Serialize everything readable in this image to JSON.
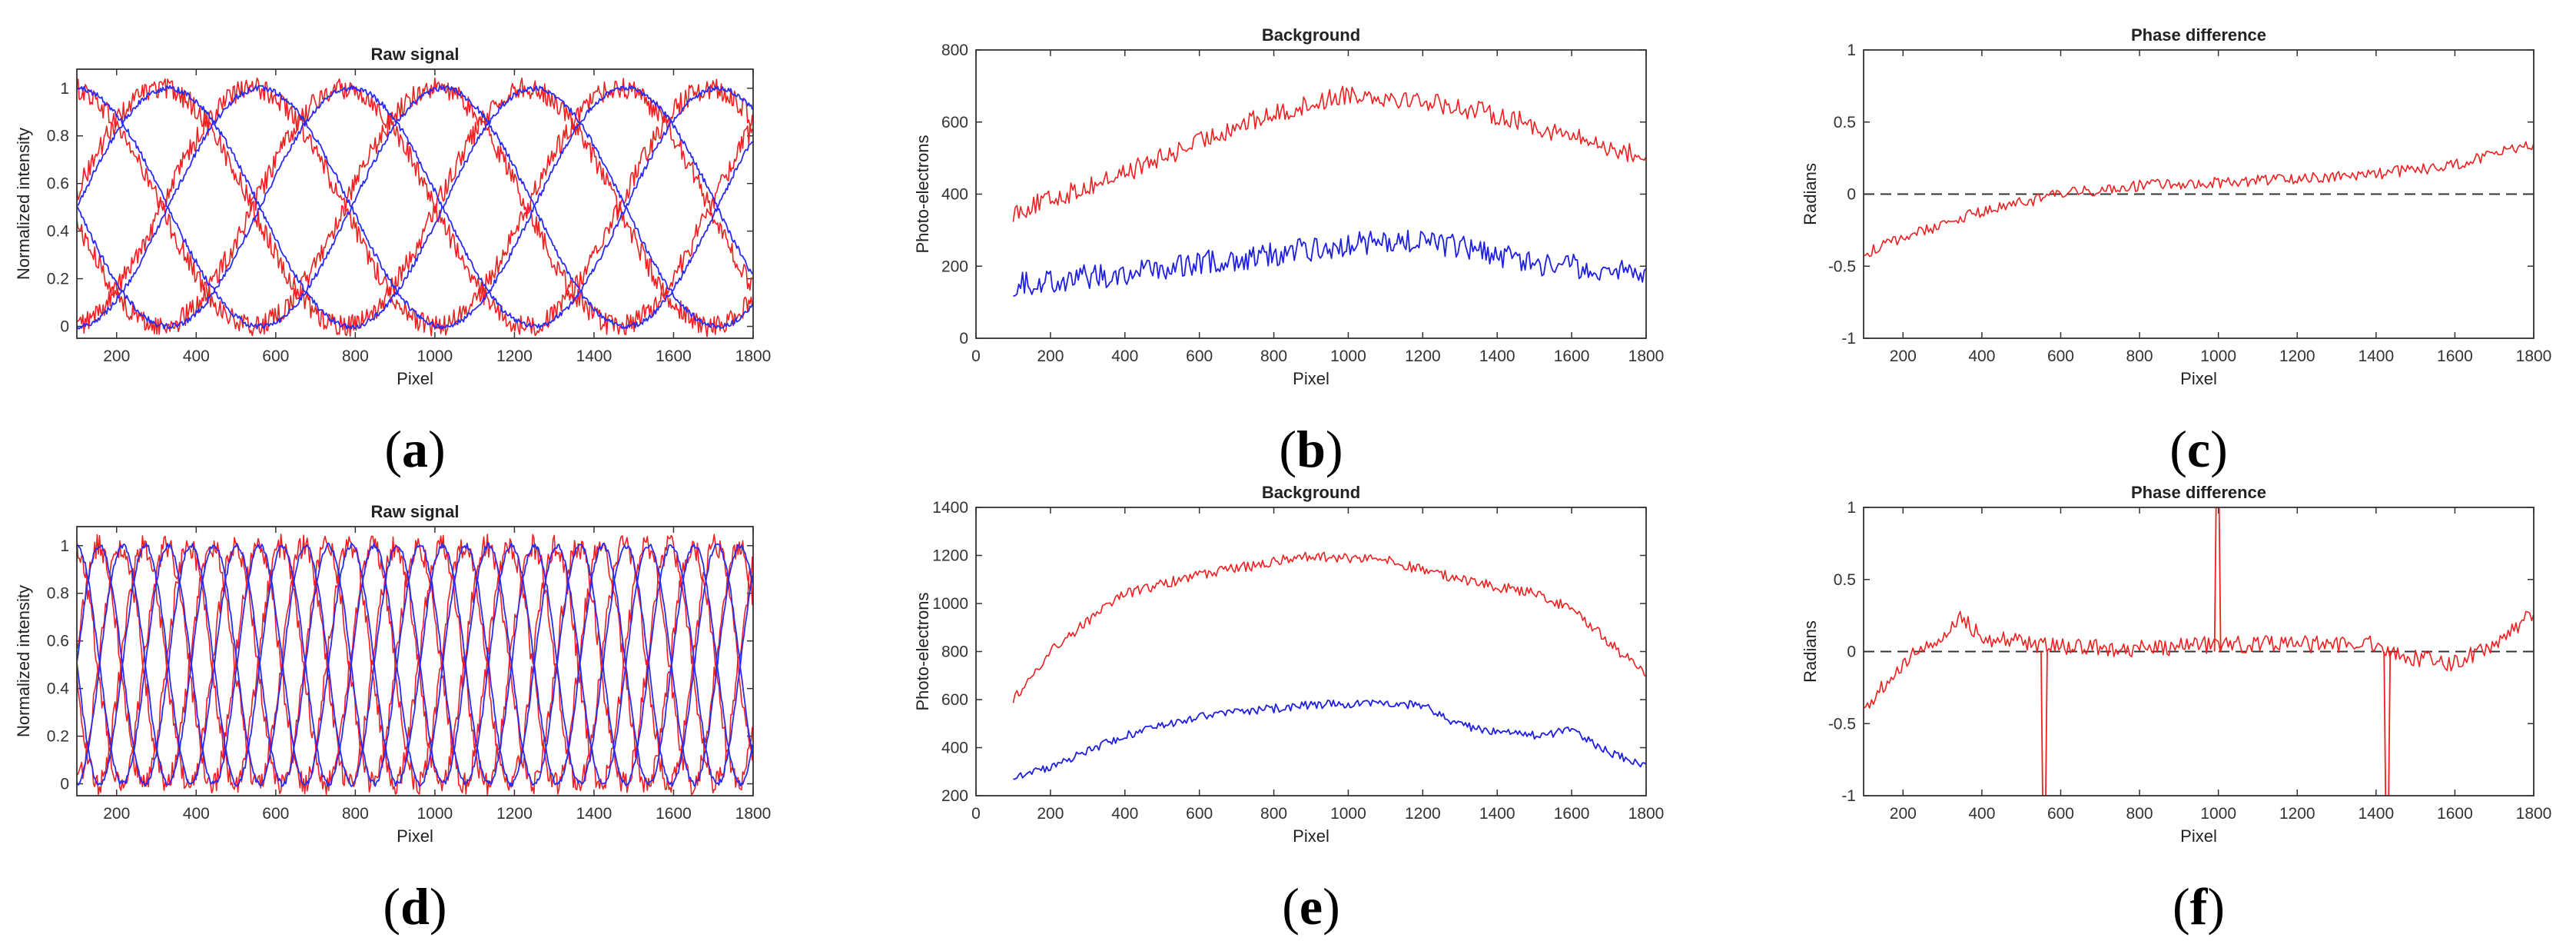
{
  "figure": {
    "panels": [
      {
        "label": "a",
        "chart_data": {
          "type": "line",
          "title": "Raw signal",
          "xlabel": "Pixel",
          "ylabel": "Normalized intensity",
          "xlim": [
            100,
            1800
          ],
          "ylim": [
            -0.05,
            1.08
          ],
          "xticks": [
            200,
            400,
            600,
            800,
            1000,
            1200,
            1400,
            1600,
            1800
          ],
          "xtick_labels": [
            "200",
            "400",
            "600",
            "800",
            "1000",
            "1200",
            "1400",
            "1600",
            "1800"
          ],
          "yticks": [
            0,
            0.2,
            0.4,
            0.6,
            0.8,
            1
          ],
          "ytick_labels": [
            "0",
            "0.2",
            "0.4",
            "0.6",
            "0.8",
            "1"
          ],
          "generator": "sinusoid",
          "series": [
            {
              "name": "blue-1",
              "color": "#2b2bf0",
              "period": 920,
              "phase": 0.0,
              "noise": 0.012
            },
            {
              "name": "blue-2",
              "color": "#2b2bf0",
              "period": 920,
              "phase": 0.25,
              "noise": 0.012
            },
            {
              "name": "blue-3",
              "color": "#2b2bf0",
              "period": 920,
              "phase": 0.5,
              "noise": 0.012
            },
            {
              "name": "blue-4",
              "color": "#2b2bf0",
              "period": 920,
              "phase": 0.75,
              "noise": 0.012
            },
            {
              "name": "red-1",
              "color": "#f02020",
              "period": 920,
              "phase": 0.02,
              "noise": 0.045
            },
            {
              "name": "red-2",
              "color": "#f02020",
              "period": 920,
              "phase": 0.27,
              "noise": 0.045
            },
            {
              "name": "red-3",
              "color": "#f02020",
              "period": 920,
              "phase": 0.52,
              "noise": 0.045
            },
            {
              "name": "red-4",
              "color": "#f02020",
              "period": 920,
              "phase": 0.77,
              "noise": 0.045
            }
          ]
        }
      },
      {
        "label": "b",
        "chart_data": {
          "type": "line",
          "title": "Background",
          "xlabel": "Pixel",
          "ylabel": "Photo-electrons",
          "xlim": [
            0,
            1800
          ],
          "ylim": [
            0,
            800
          ],
          "xticks": [
            0,
            200,
            400,
            600,
            800,
            1000,
            1200,
            1400,
            1600,
            1800
          ],
          "xtick_labels": [
            "0",
            "200",
            "400",
            "600",
            "800",
            "1000",
            "1200",
            "1400",
            "1600",
            "1800"
          ],
          "yticks": [
            0,
            200,
            400,
            600,
            800
          ],
          "ytick_labels": [
            "0",
            "200",
            "400",
            "600",
            "800"
          ],
          "generator": "profile",
          "series": [
            {
              "name": "red",
              "color": "#f02020",
              "noise": 28,
              "x": [
                100,
                300,
                500,
                700,
                900,
                1000,
                1200,
                1400,
                1600,
                1800
              ],
              "y": [
                350,
                420,
                500,
                590,
                650,
                680,
                660,
                620,
                560,
                500
              ]
            },
            {
              "name": "blue",
              "color": "#2020e0",
              "noise": 35,
              "x": [
                100,
                400,
                700,
                1000,
                1200,
                1500,
                1800
              ],
              "y": [
                150,
                180,
                220,
                260,
                270,
                210,
                180
              ]
            }
          ]
        }
      },
      {
        "label": "c",
        "chart_data": {
          "type": "line",
          "title": "Phase difference",
          "xlabel": "Pixel",
          "ylabel": "Radians",
          "xlim": [
            100,
            1800
          ],
          "ylim": [
            -1,
            1
          ],
          "xticks": [
            200,
            400,
            600,
            800,
            1000,
            1200,
            1400,
            1600,
            1800
          ],
          "xtick_labels": [
            "200",
            "400",
            "600",
            "800",
            "1000",
            "1200",
            "1400",
            "1600",
            "1800"
          ],
          "yticks": [
            -1,
            -0.5,
            0,
            0.5,
            1
          ],
          "ytick_labels": [
            "-1",
            "-0.5",
            "0",
            "0.5",
            "1"
          ],
          "zero_line": true,
          "generator": "profile",
          "series": [
            {
              "name": "red",
              "color": "#f02020",
              "noise": 0.04,
              "x": [
                100,
                200,
                400,
                600,
                800,
                1000,
                1200,
                1400,
                1600,
                1800
              ],
              "y": [
                -0.42,
                -0.3,
                -0.12,
                0.0,
                0.06,
                0.08,
                0.11,
                0.14,
                0.2,
                0.35
              ]
            }
          ]
        }
      },
      {
        "label": "d",
        "chart_data": {
          "type": "line",
          "title": "Raw signal",
          "xlabel": "Pixel",
          "ylabel": "Normalized intensity",
          "xlim": [
            100,
            1800
          ],
          "ylim": [
            -0.05,
            1.08
          ],
          "xticks": [
            200,
            400,
            600,
            800,
            1000,
            1200,
            1400,
            1600,
            1800
          ],
          "xtick_labels": [
            "200",
            "400",
            "600",
            "800",
            "1000",
            "1200",
            "1400",
            "1600",
            "1800"
          ],
          "yticks": [
            0,
            0.2,
            0.4,
            0.6,
            0.8,
            1
          ],
          "ytick_labels": [
            "0",
            "0.2",
            "0.4",
            "0.6",
            "0.8",
            "1"
          ],
          "generator": "sinusoid",
          "series": [
            {
              "name": "blue-1",
              "color": "#2b2bf0",
              "period": 230,
              "phase": 0.0,
              "noise": 0.012
            },
            {
              "name": "blue-2",
              "color": "#2b2bf0",
              "period": 230,
              "phase": 0.25,
              "noise": 0.012
            },
            {
              "name": "blue-3",
              "color": "#2b2bf0",
              "period": 230,
              "phase": 0.5,
              "noise": 0.012
            },
            {
              "name": "blue-4",
              "color": "#2b2bf0",
              "period": 230,
              "phase": 0.75,
              "noise": 0.012
            },
            {
              "name": "red-1",
              "color": "#f02020",
              "period": 230,
              "phase": 0.02,
              "noise": 0.05
            },
            {
              "name": "red-2",
              "color": "#f02020",
              "period": 230,
              "phase": 0.27,
              "noise": 0.05
            },
            {
              "name": "red-3",
              "color": "#f02020",
              "period": 230,
              "phase": 0.52,
              "noise": 0.05
            },
            {
              "name": "red-4",
              "color": "#f02020",
              "period": 230,
              "phase": 0.77,
              "noise": 0.05
            }
          ]
        }
      },
      {
        "label": "e",
        "chart_data": {
          "type": "line",
          "title": "Background",
          "xlabel": "Pixel",
          "ylabel": "Photo-electrons",
          "xlim": [
            0,
            1800
          ],
          "ylim": [
            200,
            1400
          ],
          "xticks": [
            0,
            200,
            400,
            600,
            800,
            1000,
            1200,
            1400,
            1600,
            1800
          ],
          "xtick_labels": [
            "0",
            "200",
            "400",
            "600",
            "800",
            "1000",
            "1200",
            "1400",
            "1600",
            "1800"
          ],
          "yticks": [
            200,
            400,
            600,
            800,
            1000,
            1200,
            1400
          ],
          "ytick_labels": [
            "200",
            "400",
            "600",
            "800",
            "1000",
            "1200",
            "1400"
          ],
          "generator": "profile",
          "series": [
            {
              "name": "red",
              "color": "#f02020",
              "noise": 22,
              "x": [
                100,
                200,
                300,
                400,
                600,
                900,
                1100,
                1300,
                1500,
                1600,
                1700,
                1800
              ],
              "y": [
                600,
                800,
                930,
                1040,
                1120,
                1200,
                1180,
                1100,
                1040,
                980,
                840,
                700
              ]
            },
            {
              "name": "blue",
              "color": "#2020e0",
              "noise": 18,
              "x": [
                100,
                200,
                400,
                600,
                900,
                1200,
                1300,
                1500,
                1600,
                1700,
                1800
              ],
              "y": [
                280,
                320,
                450,
                530,
                580,
                580,
                490,
                450,
                470,
                380,
                330
              ]
            }
          ]
        }
      },
      {
        "label": "f",
        "chart_data": {
          "type": "line",
          "title": "Phase difference",
          "xlabel": "Pixel",
          "ylabel": "Radians",
          "xlim": [
            100,
            1800
          ],
          "ylim": [
            -1,
            1
          ],
          "xticks": [
            200,
            400,
            600,
            800,
            1000,
            1200,
            1400,
            1600,
            1800
          ],
          "xtick_labels": [
            "200",
            "400",
            "600",
            "800",
            "1000",
            "1200",
            "1400",
            "1600",
            "1800"
          ],
          "yticks": [
            -1,
            -0.5,
            0,
            0.5,
            1
          ],
          "ytick_labels": [
            "-1",
            "-0.5",
            "0",
            "0.5",
            "1"
          ],
          "zero_line": true,
          "generator": "profile",
          "spikes": [
            [
              560,
              -1
            ],
            [
              1000,
              1
            ],
            [
              1430,
              -1
            ]
          ],
          "series": [
            {
              "name": "red",
              "color": "#f02020",
              "noise": 0.06,
              "x": [
                100,
                200,
                300,
                350,
                400,
                600,
                800,
                1000,
                1200,
                1400,
                1500,
                1600,
                1700,
                1800
              ],
              "y": [
                -0.4,
                -0.08,
                0.1,
                0.24,
                0.1,
                0.03,
                0.02,
                0.05,
                0.05,
                0.05,
                -0.05,
                -0.08,
                0.05,
                0.28
              ]
            }
          ]
        }
      }
    ]
  }
}
